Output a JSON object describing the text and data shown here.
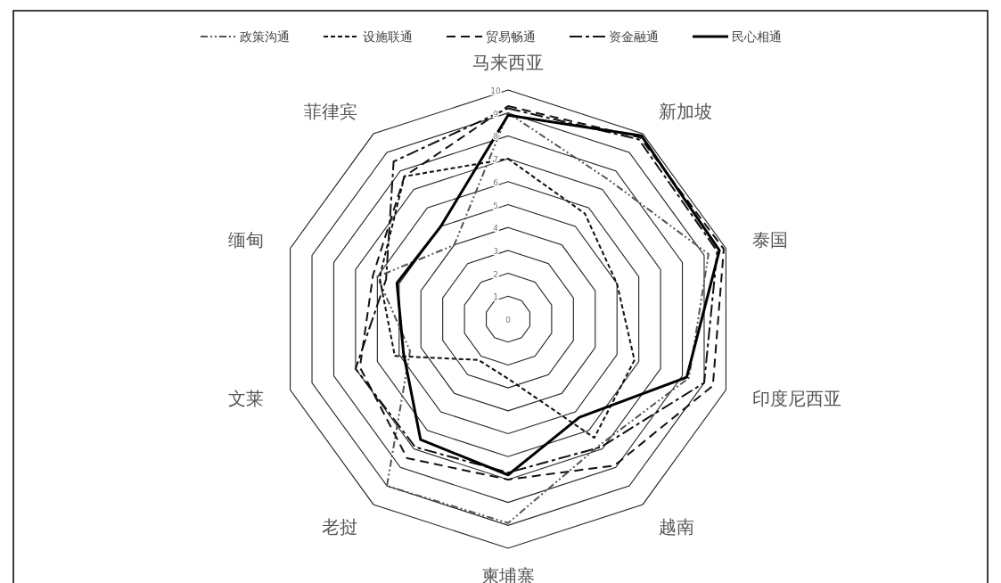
{
  "chart_data": {
    "type": "radar",
    "categories": [
      "马来西亚",
      "新加坡",
      "泰国",
      "印度尼西亚",
      "越南",
      "柬埔寨",
      "老挝",
      "文莱",
      "缅甸",
      "菲律宾"
    ],
    "ylim": [
      0,
      10
    ],
    "yticks": [
      0,
      1,
      2,
      3,
      4,
      5,
      6,
      7,
      8,
      9,
      10
    ],
    "grid": true,
    "legend": "top",
    "marker": "none",
    "series": [
      {
        "name": "政策沟通",
        "color": "#555555",
        "line_style": "dashdotdot",
        "values": [
          9,
          7.5,
          9.2,
          8.3,
          6.8,
          8.9,
          9,
          4.5,
          6,
          4
        ]
      },
      {
        "name": "设施联通",
        "color": "#111111",
        "line_style": "dashed",
        "values": [
          7,
          5.7,
          5,
          5.8,
          6.4,
          2.6,
          2.2,
          5.2,
          5.9,
          7.7
        ]
      },
      {
        "name": "贸易畅通",
        "color": "#111111",
        "line_style": "longdash",
        "values": [
          9.3,
          9.8,
          9.9,
          9.4,
          7.9,
          7,
          7.5,
          6.8,
          6.2,
          7.7
        ]
      },
      {
        "name": "资金融通",
        "color": "#111111",
        "line_style": "dashdot",
        "values": [
          9.2,
          9.7,
          9.6,
          9,
          6.9,
          6.7,
          6.9,
          7,
          5.6,
          8.5
        ]
      },
      {
        "name": "民心相通",
        "color": "#000000",
        "line_style": "solid",
        "values": [
          8.9,
          9.9,
          9.7,
          8.2,
          5.3,
          6.8,
          6.5,
          4.8,
          5.1,
          5
        ]
      }
    ]
  }
}
